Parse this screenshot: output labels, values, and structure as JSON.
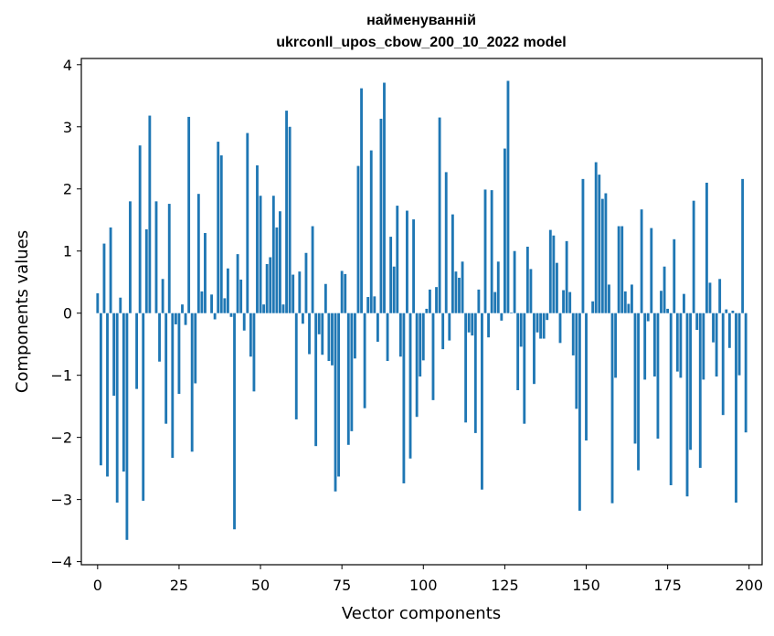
{
  "chart_data": {
    "type": "bar",
    "title": [
      "найменуванній",
      "ukrconll_upos_cbow_200_10_2022 model"
    ],
    "xlabel": "Vector components",
    "ylabel": "Components values",
    "xlim": [
      -5,
      204
    ],
    "ylim": [
      -4.05,
      4.1
    ],
    "x_ticks": [
      0,
      25,
      50,
      75,
      100,
      125,
      150,
      175,
      200
    ],
    "x_tick_labels": [
      "0",
      "25",
      "50",
      "75",
      "100",
      "125",
      "150",
      "175",
      "200"
    ],
    "y_ticks": [
      -4,
      -3,
      -2,
      -1,
      0,
      1,
      2,
      3,
      4
    ],
    "y_tick_labels": [
      "−4",
      "−3",
      "−2",
      "−1",
      "0",
      "1",
      "2",
      "3",
      "4"
    ],
    "grid": false,
    "bar_color": "#1f77b4",
    "x": [
      0,
      1,
      2,
      3,
      4,
      5,
      6,
      7,
      8,
      9,
      10,
      11,
      12,
      13,
      14,
      15,
      16,
      17,
      18,
      19,
      20,
      21,
      22,
      23,
      24,
      25,
      26,
      27,
      28,
      29,
      30,
      31,
      32,
      33,
      34,
      35,
      36,
      37,
      38,
      39,
      40,
      41,
      42,
      43,
      44,
      45,
      46,
      47,
      48,
      49,
      50,
      51,
      52,
      53,
      54,
      55,
      56,
      57,
      58,
      59,
      60,
      61,
      62,
      63,
      64,
      65,
      66,
      67,
      68,
      69,
      70,
      71,
      72,
      73,
      74,
      75,
      76,
      77,
      78,
      79,
      80,
      81,
      82,
      83,
      84,
      85,
      86,
      87,
      88,
      89,
      90,
      91,
      92,
      93,
      94,
      95,
      96,
      97,
      98,
      99,
      100,
      101,
      102,
      103,
      104,
      105,
      106,
      107,
      108,
      109,
      110,
      111,
      112,
      113,
      114,
      115,
      116,
      117,
      118,
      119,
      120,
      121,
      122,
      123,
      124,
      125,
      126,
      127,
      128,
      129,
      130,
      131,
      132,
      133,
      134,
      135,
      136,
      137,
      138,
      139,
      140,
      141,
      142,
      143,
      144,
      145,
      146,
      147,
      148,
      149,
      150,
      151,
      152,
      153,
      154,
      155,
      156,
      157,
      158,
      159,
      160,
      161,
      162,
      163,
      164,
      165,
      166,
      167,
      168,
      169,
      170,
      171,
      172,
      173,
      174,
      175,
      176,
      177,
      178,
      179,
      180,
      181,
      182,
      183,
      184,
      185,
      186,
      187,
      188,
      189,
      190,
      191,
      192,
      193,
      194,
      195,
      196,
      197,
      198,
      199
    ],
    "values": [
      0.32,
      -2.45,
      1.12,
      -2.63,
      1.38,
      -1.33,
      -3.05,
      0.25,
      -2.55,
      -3.65,
      1.8,
      0.0,
      -1.22,
      2.7,
      -3.02,
      1.35,
      3.18,
      0.0,
      1.8,
      -0.78,
      0.55,
      -1.78,
      1.76,
      -2.33,
      -0.18,
      -1.3,
      0.14,
      -0.19,
      3.16,
      -2.23,
      -1.13,
      1.92,
      0.35,
      1.29,
      0.0,
      0.3,
      -0.1,
      2.76,
      2.54,
      0.24,
      0.72,
      -0.06,
      -3.48,
      0.95,
      0.54,
      -0.28,
      2.9,
      -0.7,
      -1.26,
      2.38,
      1.89,
      0.14,
      0.79,
      0.9,
      1.89,
      1.38,
      1.64,
      0.14,
      3.26,
      3.0,
      0.62,
      -1.71,
      0.67,
      -0.17,
      0.97,
      -0.66,
      1.4,
      -2.14,
      -0.34,
      -0.67,
      0.47,
      -0.77,
      -0.84,
      -2.87,
      -2.63,
      0.68,
      0.63,
      -2.12,
      -1.9,
      -0.73,
      2.37,
      3.62,
      -1.53,
      0.26,
      2.62,
      0.27,
      -0.46,
      3.13,
      3.71,
      -0.77,
      1.23,
      0.75,
      1.73,
      -0.7,
      -2.74,
      1.65,
      -2.34,
      1.51,
      -1.67,
      -1.02,
      -0.76,
      0.07,
      0.38,
      -1.4,
      0.42,
      3.15,
      -0.58,
      2.27,
      -0.44,
      1.59,
      0.67,
      0.57,
      0.83,
      -1.76,
      -0.31,
      -0.36,
      -1.93,
      0.38,
      -2.84,
      1.99,
      -0.39,
      1.98,
      0.34,
      0.83,
      -0.12,
      2.65,
      3.74,
      0.01,
      1.0,
      -1.24,
      -0.54,
      -1.78,
      1.07,
      0.71,
      -1.14,
      -0.31,
      -0.41,
      -0.41,
      -0.11,
      1.34,
      1.25,
      0.81,
      -0.48,
      0.37,
      1.16,
      0.34,
      -0.68,
      -1.54,
      -3.18,
      2.16,
      -2.05,
      0.0,
      0.19,
      2.43,
      2.23,
      1.84,
      1.93,
      0.46,
      -3.06,
      -1.04,
      1.4,
      1.4,
      0.35,
      0.15,
      0.46,
      -2.1,
      -2.53,
      1.67,
      -1.07,
      -0.13,
      1.37,
      -1.02,
      -2.02,
      0.36,
      0.75,
      0.07,
      -2.77,
      1.19,
      -0.94,
      -1.04,
      0.31,
      -2.95,
      -2.2,
      1.81,
      -0.27,
      -2.49,
      -1.07,
      2.1,
      0.49,
      -0.47,
      -1.02,
      0.55,
      -1.64,
      0.06,
      -0.56,
      0.04,
      -3.05,
      -1.0,
      2.16,
      -1.92
    ]
  }
}
